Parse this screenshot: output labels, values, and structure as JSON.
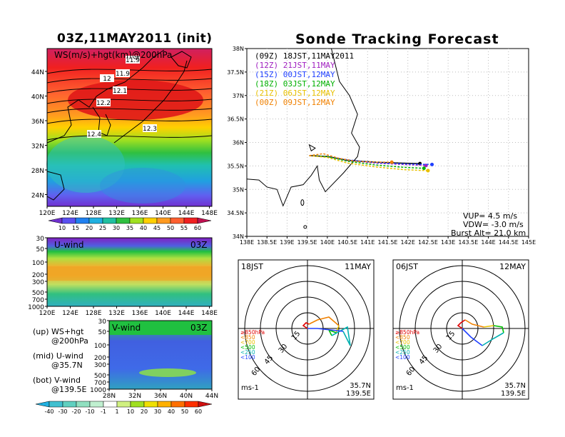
{
  "left": {
    "title": "03Z,11MAY2011 (init)",
    "map": {
      "label": "WS(m/s)+hgt(km)@200hPa",
      "contours": [
        "11.9",
        "11.9",
        "12",
        "12.1",
        "12.2",
        "12.3",
        "12.4"
      ],
      "lat_ticks": [
        "44N",
        "40N",
        "36N",
        "32N",
        "28N",
        "24N"
      ],
      "lon_ticks": [
        "120E",
        "124E",
        "128E",
        "132E",
        "136E",
        "140E",
        "144E",
        "148E"
      ]
    },
    "ws_colorbar": [
      "10",
      "15",
      "20",
      "25",
      "30",
      "35",
      "40",
      "45",
      "50",
      "55",
      "60"
    ],
    "uwind": {
      "label": "U-wind",
      "time": "03Z",
      "p_ticks": [
        "30",
        "50",
        "100",
        "200",
        "300",
        "500",
        "700",
        "1000"
      ],
      "lon_ticks": [
        "120E",
        "124E",
        "128E",
        "132E",
        "136E",
        "140E",
        "144E",
        "148E"
      ]
    },
    "vwind": {
      "label": "V-wind",
      "time": "03Z",
      "p_ticks": [
        "30",
        "50",
        "100",
        "200",
        "300",
        "500",
        "700",
        "1000"
      ],
      "lat_ticks": [
        "28N",
        "32N",
        "36N",
        "40N",
        "44N"
      ]
    },
    "legend": [
      {
        "a": "(up) WS+hgt",
        "b": "@200hPa"
      },
      {
        "a": "(mid) U-wind",
        "b": "@35.7N"
      },
      {
        "a": "(bot) V-wind",
        "b": "@139.5E"
      }
    ],
    "wind_colorbar": [
      "-40",
      "-30",
      "-20",
      "-10",
      "-1",
      "1",
      "10",
      "20",
      "30",
      "40",
      "50",
      "60"
    ]
  },
  "right": {
    "title": "Sonde Tracking Forecast",
    "runs": [
      {
        "label": "(09Z) 18JST,11MAY2011",
        "color": "#000000"
      },
      {
        "label": "(12Z) 21JST,11MAY",
        "color": "#a020c0"
      },
      {
        "label": "(15Z) 00JST,12MAY",
        "color": "#2040ff"
      },
      {
        "label": "(18Z) 03JST,12MAY",
        "color": "#00b000"
      },
      {
        "label": "(21Z) 06JST,12MAY",
        "color": "#e8c000"
      },
      {
        "label": "(00Z) 09JST,12MAY",
        "color": "#f08000"
      }
    ],
    "lat_ticks": [
      "38N",
      "37.5N",
      "37N",
      "36.5N",
      "36N",
      "35.5N",
      "35N",
      "34.5N",
      "34N"
    ],
    "lon_ticks": [
      "138E",
      "138.5E",
      "139E",
      "139.5E",
      "140E",
      "140.5E",
      "141E",
      "141.5E",
      "142E",
      "142.5E",
      "143E",
      "143.5E",
      "144E",
      "144.5E",
      "145E"
    ],
    "info": [
      "VUP= 4.5 m/s",
      "VDW= -3.0 m/s",
      "Burst Alt= 21.0 km"
    ],
    "polar1": {
      "time": "18JST",
      "date": "11MAY",
      "rings": [
        "15",
        "30",
        "45",
        "60"
      ],
      "loc1": "35.7N",
      "loc2": "139.5E",
      "unit": "ms-1"
    },
    "polar2": {
      "time": "06JST",
      "date": "12MAY",
      "rings": [
        "15",
        "30",
        "45",
        "60"
      ],
      "loc1": "35.7N",
      "loc2": "139.5E",
      "unit": "ms-1"
    },
    "levels": [
      {
        "label": "≥850hPa",
        "color": "#e00000"
      },
      {
        "label": "<850",
        "color": "#f08000"
      },
      {
        "label": "<700",
        "color": "#e8c000"
      },
      {
        "label": "<500",
        "color": "#00c000"
      },
      {
        "label": "<250",
        "color": "#00b0b0"
      },
      {
        "label": "<100",
        "color": "#2040ff"
      }
    ]
  },
  "chart_data": [
    {
      "type": "heatmap",
      "title": "WS(m/s)+hgt(km)@200hPa",
      "xlim": [
        "120E",
        "148E"
      ],
      "ylim": [
        "22N",
        "48N"
      ],
      "colorbar_ticks": [
        10,
        15,
        20,
        25,
        30,
        35,
        40,
        45,
        50,
        55,
        60
      ],
      "contour_levels_km": [
        11.9,
        12,
        12.1,
        12.2,
        12.3,
        12.4
      ]
    },
    {
      "type": "heatmap",
      "title": "U-wind 03Z @35.7N",
      "pressure_levels_hPa": [
        30,
        50,
        100,
        200,
        300,
        500,
        700,
        1000
      ]
    },
    {
      "type": "heatmap",
      "title": "V-wind 03Z @139.5E",
      "pressure_levels_hPa": [
        30,
        50,
        100,
        200,
        300,
        500,
        700,
        1000
      ]
    },
    {
      "type": "line",
      "title": "Sonde Tracking Forecast",
      "xlim": [
        138,
        145
      ],
      "ylim": [
        34,
        38
      ],
      "series": [
        {
          "name": "(09Z) 18JST,11MAY2011",
          "color": "#000000",
          "lon": [
            139.55,
            140.0,
            140.5,
            141.2,
            141.8,
            142.3
          ],
          "lat": [
            35.72,
            35.7,
            35.62,
            35.58,
            35.56,
            35.55
          ]
        },
        {
          "name": "(12Z) 21JST,11MAY",
          "color": "#a020c0",
          "lon": [
            139.55,
            140.0,
            140.5,
            141.2,
            141.9,
            142.45
          ],
          "lat": [
            35.72,
            35.7,
            35.62,
            35.56,
            35.53,
            35.51
          ]
        },
        {
          "name": "(15Z) 00JST,12MAY",
          "color": "#2040ff",
          "lon": [
            139.55,
            140.0,
            140.5,
            141.2,
            142.0,
            142.6
          ],
          "lat": [
            35.72,
            35.7,
            35.63,
            35.57,
            35.54,
            35.53
          ]
        },
        {
          "name": "(18Z) 03JST,12MAY",
          "color": "#00b000",
          "lon": [
            139.55,
            140.0,
            140.5,
            141.2,
            141.9,
            142.4
          ],
          "lat": [
            35.72,
            35.7,
            35.6,
            35.52,
            35.47,
            35.45
          ]
        },
        {
          "name": "(21Z) 06JST,12MAY",
          "color": "#e8c000",
          "lon": [
            139.55,
            140.0,
            140.5,
            141.2,
            141.9,
            142.5
          ],
          "lat": [
            35.72,
            35.68,
            35.56,
            35.48,
            35.42,
            35.4
          ]
        },
        {
          "name": "(00Z) 09JST,12MAY",
          "color": "#f08000",
          "lon": [
            139.55,
            139.9,
            140.3,
            140.7,
            141.2,
            141.6
          ],
          "lat": [
            35.72,
            35.76,
            35.66,
            35.6,
            35.58,
            35.58
          ]
        }
      ]
    }
  ]
}
